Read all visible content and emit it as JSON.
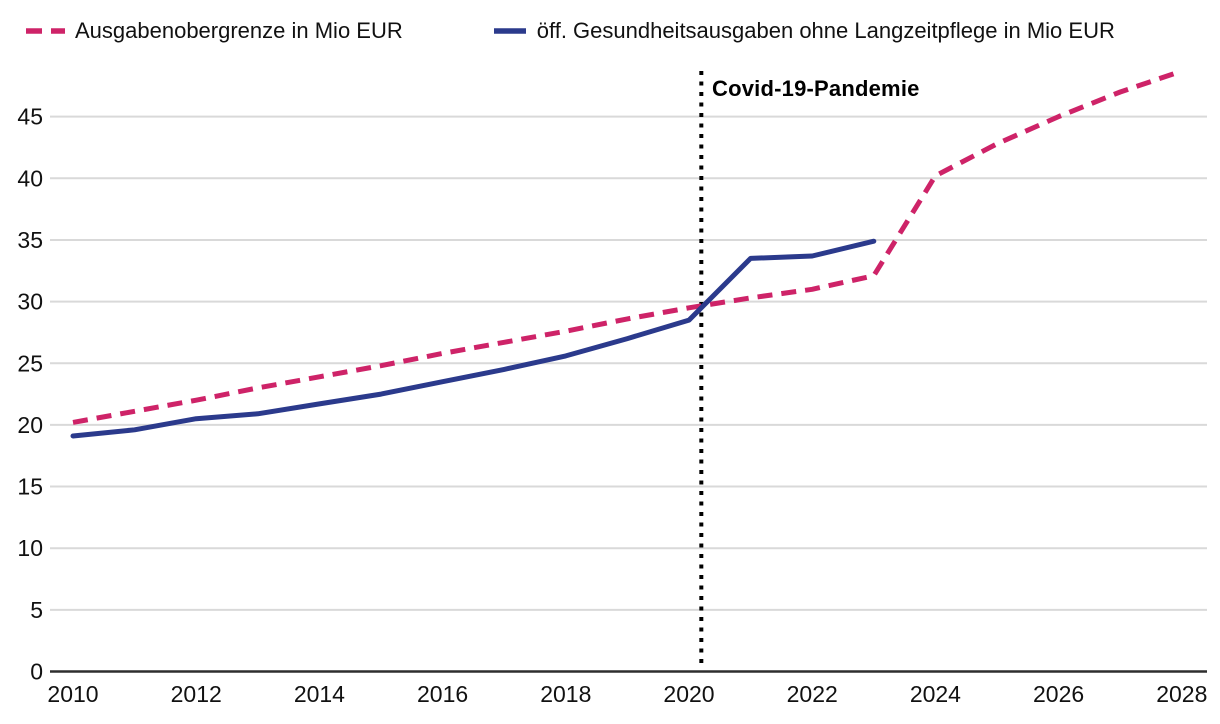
{
  "legend": {
    "items": [
      {
        "label": "Ausgabenobergrenze in Mio EUR",
        "color": "#ce2368",
        "style": "dashed"
      },
      {
        "label": "öff. Gesundheitsausgaben ohne Langzeitpflege in Mio EUR",
        "color": "#2b3a8c",
        "style": "solid"
      }
    ]
  },
  "annotation": {
    "label": "Covid-19-Pandemie",
    "x_year": 2020.2
  },
  "colors": {
    "series_cap": "#ce2368",
    "series_health": "#2b3a8c",
    "gridline": "#d9d9d9",
    "axis": "#2e2e2e",
    "annotation_line": "#000000",
    "text": "#111111"
  },
  "chart_data": {
    "type": "line",
    "x": [
      2010,
      2011,
      2012,
      2013,
      2014,
      2015,
      2016,
      2017,
      2018,
      2019,
      2020,
      2021,
      2022,
      2023,
      2024,
      2025,
      2026,
      2027,
      2028
    ],
    "series": [
      {
        "name": "Ausgabenobergrenze in Mio EUR",
        "color": "#ce2368",
        "dashed": true,
        "values": [
          20.2,
          21.1,
          22.0,
          23.0,
          23.9,
          24.8,
          25.8,
          26.7,
          27.6,
          28.6,
          29.5,
          30.3,
          31.0,
          32.1,
          40.2,
          42.8,
          45.0,
          47.0,
          48.7
        ]
      },
      {
        "name": "öff. Gesundheitsausgaben ohne Langzeitpflege in Mio EUR",
        "color": "#2b3a8c",
        "dashed": false,
        "values": [
          19.1,
          19.6,
          20.5,
          20.9,
          21.7,
          22.5,
          23.5,
          24.5,
          25.6,
          27.0,
          28.5,
          33.5,
          33.7,
          34.9,
          null,
          null,
          null,
          null,
          null
        ]
      }
    ],
    "xticks": [
      2010,
      2012,
      2014,
      2016,
      2018,
      2020,
      2022,
      2024,
      2026,
      2028
    ],
    "yticks": [
      0,
      5,
      10,
      15,
      20,
      25,
      30,
      35,
      40,
      45
    ],
    "xlim": [
      2010,
      2028
    ],
    "ylim": [
      0,
      49
    ],
    "grid": true,
    "legend_position": "top-left",
    "title": "",
    "xlabel": "",
    "ylabel": "",
    "annotations": [
      {
        "type": "vline",
        "x": 2020.2,
        "label": "Covid-19-Pandemie",
        "line_style": "dotted"
      }
    ]
  }
}
